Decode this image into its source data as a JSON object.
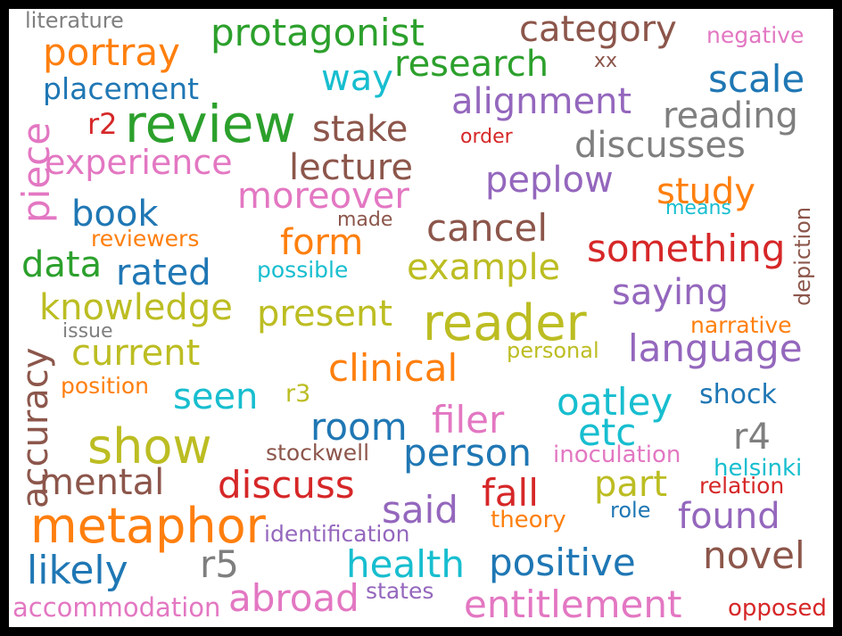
{
  "colors": {
    "frame": "#000000",
    "background": "#ffffff",
    "palette": {
      "blue": "#1f77b4",
      "orange": "#ff7f0e",
      "green": "#2ca02c",
      "red": "#d62728",
      "purple": "#9467bd",
      "brown": "#8c564b",
      "pink": "#e377c2",
      "gray": "#7f7f7f",
      "olive": "#bcbd22",
      "cyan": "#17becf"
    }
  },
  "words": [
    {
      "text": "literature",
      "color": "gray",
      "orientation": "horizontal"
    },
    {
      "text": "protagonist",
      "color": "green",
      "orientation": "horizontal"
    },
    {
      "text": "category",
      "color": "brown",
      "orientation": "horizontal"
    },
    {
      "text": "negative",
      "color": "pink",
      "orientation": "horizontal"
    },
    {
      "text": "portray",
      "color": "orange",
      "orientation": "horizontal"
    },
    {
      "text": "research",
      "color": "green",
      "orientation": "horizontal"
    },
    {
      "text": "xx",
      "color": "brown",
      "orientation": "horizontal"
    },
    {
      "text": "way",
      "color": "cyan",
      "orientation": "horizontal"
    },
    {
      "text": "scale",
      "color": "blue",
      "orientation": "horizontal"
    },
    {
      "text": "placement",
      "color": "blue",
      "orientation": "horizontal"
    },
    {
      "text": "alignment",
      "color": "purple",
      "orientation": "horizontal"
    },
    {
      "text": "review",
      "color": "green",
      "orientation": "horizontal"
    },
    {
      "text": "r2",
      "color": "red",
      "orientation": "horizontal"
    },
    {
      "text": "stake",
      "color": "brown",
      "orientation": "horizontal"
    },
    {
      "text": "reading",
      "color": "gray",
      "orientation": "horizontal"
    },
    {
      "text": "piece",
      "color": "pink",
      "orientation": "vertical"
    },
    {
      "text": "order",
      "color": "red",
      "orientation": "horizontal"
    },
    {
      "text": "discusses",
      "color": "gray",
      "orientation": "horizontal"
    },
    {
      "text": "experience",
      "color": "pink",
      "orientation": "horizontal"
    },
    {
      "text": "lecture",
      "color": "brown",
      "orientation": "horizontal"
    },
    {
      "text": "peplow",
      "color": "purple",
      "orientation": "horizontal"
    },
    {
      "text": "moreover",
      "color": "pink",
      "orientation": "horizontal"
    },
    {
      "text": "study",
      "color": "orange",
      "orientation": "horizontal"
    },
    {
      "text": "depiction",
      "color": "brown",
      "orientation": "vertical"
    },
    {
      "text": "book",
      "color": "blue",
      "orientation": "horizontal"
    },
    {
      "text": "made",
      "color": "brown",
      "orientation": "horizontal"
    },
    {
      "text": "means",
      "color": "cyan",
      "orientation": "horizontal"
    },
    {
      "text": "cancel",
      "color": "brown",
      "orientation": "horizontal"
    },
    {
      "text": "reviewers",
      "color": "orange",
      "orientation": "horizontal"
    },
    {
      "text": "form",
      "color": "orange",
      "orientation": "horizontal"
    },
    {
      "text": "something",
      "color": "red",
      "orientation": "horizontal"
    },
    {
      "text": "data",
      "color": "green",
      "orientation": "horizontal"
    },
    {
      "text": "rated",
      "color": "blue",
      "orientation": "horizontal"
    },
    {
      "text": "possible",
      "color": "cyan",
      "orientation": "horizontal"
    },
    {
      "text": "example",
      "color": "olive",
      "orientation": "horizontal"
    },
    {
      "text": "saying",
      "color": "purple",
      "orientation": "horizontal"
    },
    {
      "text": "knowledge",
      "color": "olive",
      "orientation": "horizontal"
    },
    {
      "text": "present",
      "color": "olive",
      "orientation": "horizontal"
    },
    {
      "text": "reader",
      "color": "olive",
      "orientation": "horizontal"
    },
    {
      "text": "narrative",
      "color": "orange",
      "orientation": "horizontal"
    },
    {
      "text": "accuracy",
      "color": "brown",
      "orientation": "vertical"
    },
    {
      "text": "issue",
      "color": "gray",
      "orientation": "horizontal"
    },
    {
      "text": "current",
      "color": "olive",
      "orientation": "horizontal"
    },
    {
      "text": "personal",
      "color": "olive",
      "orientation": "horizontal"
    },
    {
      "text": "language",
      "color": "purple",
      "orientation": "horizontal"
    },
    {
      "text": "clinical",
      "color": "orange",
      "orientation": "horizontal"
    },
    {
      "text": "position",
      "color": "orange",
      "orientation": "horizontal"
    },
    {
      "text": "seen",
      "color": "cyan",
      "orientation": "horizontal"
    },
    {
      "text": "r3",
      "color": "olive",
      "orientation": "horizontal"
    },
    {
      "text": "oatley",
      "color": "cyan",
      "orientation": "horizontal"
    },
    {
      "text": "shock",
      "color": "blue",
      "orientation": "horizontal"
    },
    {
      "text": "room",
      "color": "blue",
      "orientation": "horizontal"
    },
    {
      "text": "filer",
      "color": "pink",
      "orientation": "horizontal"
    },
    {
      "text": "etc",
      "color": "cyan",
      "orientation": "horizontal"
    },
    {
      "text": "show",
      "color": "olive",
      "orientation": "horizontal"
    },
    {
      "text": "r4",
      "color": "gray",
      "orientation": "horizontal"
    },
    {
      "text": "stockwell",
      "color": "brown",
      "orientation": "horizontal"
    },
    {
      "text": "person",
      "color": "blue",
      "orientation": "horizontal"
    },
    {
      "text": "inoculation",
      "color": "pink",
      "orientation": "horizontal"
    },
    {
      "text": "helsinki",
      "color": "cyan",
      "orientation": "horizontal"
    },
    {
      "text": "mental",
      "color": "brown",
      "orientation": "horizontal"
    },
    {
      "text": "discuss",
      "color": "red",
      "orientation": "horizontal"
    },
    {
      "text": "part",
      "color": "olive",
      "orientation": "horizontal"
    },
    {
      "text": "relation",
      "color": "red",
      "orientation": "horizontal"
    },
    {
      "text": "fall",
      "color": "red",
      "orientation": "horizontal"
    },
    {
      "text": "said",
      "color": "purple",
      "orientation": "horizontal"
    },
    {
      "text": "found",
      "color": "purple",
      "orientation": "horizontal"
    },
    {
      "text": "role",
      "color": "blue",
      "orientation": "horizontal"
    },
    {
      "text": "metaphor",
      "color": "orange",
      "orientation": "horizontal"
    },
    {
      "text": "theory",
      "color": "orange",
      "orientation": "horizontal"
    },
    {
      "text": "identification",
      "color": "purple",
      "orientation": "horizontal"
    },
    {
      "text": "r5",
      "color": "gray",
      "orientation": "horizontal"
    },
    {
      "text": "novel",
      "color": "brown",
      "orientation": "horizontal"
    },
    {
      "text": "health",
      "color": "cyan",
      "orientation": "horizontal"
    },
    {
      "text": "positive",
      "color": "blue",
      "orientation": "horizontal"
    },
    {
      "text": "likely",
      "color": "blue",
      "orientation": "horizontal"
    },
    {
      "text": "abroad",
      "color": "pink",
      "orientation": "horizontal"
    },
    {
      "text": "states",
      "color": "purple",
      "orientation": "horizontal"
    },
    {
      "text": "entitlement",
      "color": "pink",
      "orientation": "horizontal"
    },
    {
      "text": "accommodation",
      "color": "pink",
      "orientation": "horizontal"
    },
    {
      "text": "opposed",
      "color": "red",
      "orientation": "horizontal"
    }
  ]
}
